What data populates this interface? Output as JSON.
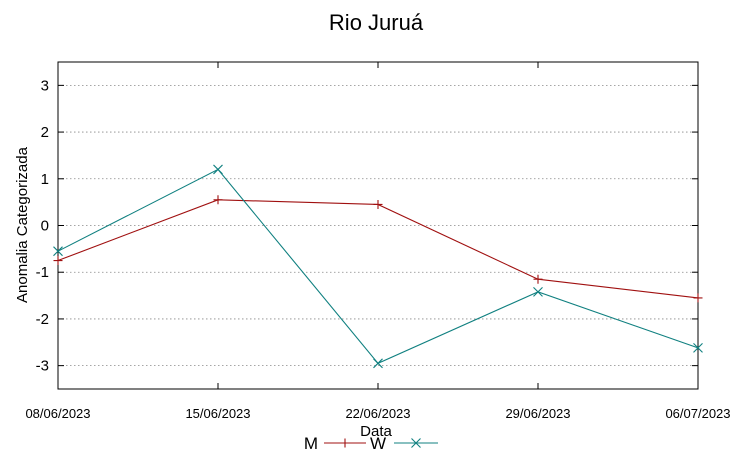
{
  "chart_data": {
    "type": "line",
    "title": "Rio Juruá",
    "xlabel": "Data",
    "ylabel": "Anomalia Categorizada",
    "categories": [
      "08/06/2023",
      "15/06/2023",
      "22/06/2023",
      "29/06/2023",
      "06/07/2023"
    ],
    "ylim": [
      -3.5,
      3.5
    ],
    "yticks": [
      3,
      2,
      1,
      0,
      -1,
      -2,
      -3
    ],
    "grid": true,
    "legend_position": "bottom",
    "series": [
      {
        "name": "M",
        "marker": "plus",
        "color": "#a01010",
        "values": [
          -0.75,
          0.55,
          0.45,
          -1.15,
          -1.55
        ]
      },
      {
        "name": "W",
        "marker": "cross",
        "color": "#108080",
        "values": [
          -0.55,
          1.2,
          -2.95,
          -1.42,
          -2.62
        ]
      }
    ]
  }
}
